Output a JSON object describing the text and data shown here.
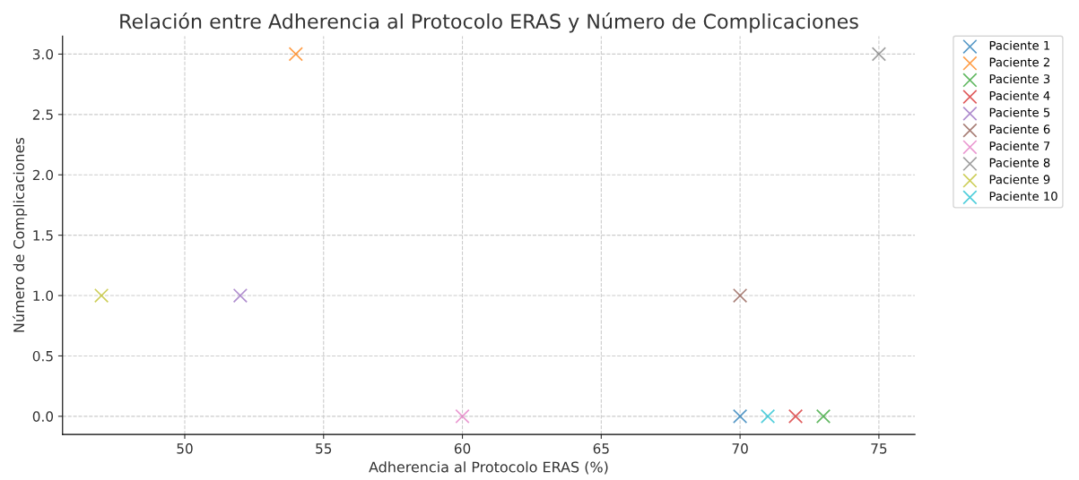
{
  "chart_data": {
    "type": "scatter",
    "title": "Relación entre Adherencia al Protocolo ERAS y Número de Complicaciones",
    "xlabel": "Adherencia al Protocolo ERAS (%)",
    "ylabel": "Número de Complicaciones",
    "series": [
      {
        "name": "Paciente 1",
        "color": "#1f77b4",
        "x": [
          70
        ],
        "values": [
          0
        ]
      },
      {
        "name": "Paciente 2",
        "color": "#ff7f0e",
        "x": [
          54
        ],
        "values": [
          3
        ]
      },
      {
        "name": "Paciente 3",
        "color": "#2ca02c",
        "x": [
          73
        ],
        "values": [
          0
        ]
      },
      {
        "name": "Paciente 4",
        "color": "#d62728",
        "x": [
          72
        ],
        "values": [
          0
        ]
      },
      {
        "name": "Paciente 5",
        "color": "#9467bd",
        "x": [
          52
        ],
        "values": [
          1
        ]
      },
      {
        "name": "Paciente 6",
        "color": "#8c564b",
        "x": [
          70
        ],
        "values": [
          1
        ]
      },
      {
        "name": "Paciente 7",
        "color": "#e377c2",
        "x": [
          60
        ],
        "values": [
          0
        ]
      },
      {
        "name": "Paciente 8",
        "color": "#7f7f7f",
        "x": [
          75
        ],
        "values": [
          3
        ]
      },
      {
        "name": "Paciente 9",
        "color": "#bcbd22",
        "x": [
          47
        ],
        "values": [
          1
        ]
      },
      {
        "name": "Paciente 10",
        "color": "#17becf",
        "x": [
          71
        ],
        "values": [
          0
        ]
      }
    ],
    "xlim": [
      45.6,
      76.3
    ],
    "xticks": [
      50,
      55,
      60,
      65,
      70,
      75
    ],
    "ylim": [
      -0.15,
      3.15
    ],
    "yticks": [
      {
        "value": 0,
        "label": "0.0"
      },
      {
        "value": 0.5,
        "label": "0.5"
      },
      {
        "value": 1,
        "label": "1.0"
      },
      {
        "value": 1.5,
        "label": "1.5"
      },
      {
        "value": 2,
        "label": "2.0"
      },
      {
        "value": 2.5,
        "label": "2.5"
      },
      {
        "value": 3,
        "label": "3.0"
      }
    ],
    "grid": true,
    "legend": "top right",
    "marker": "cross"
  }
}
